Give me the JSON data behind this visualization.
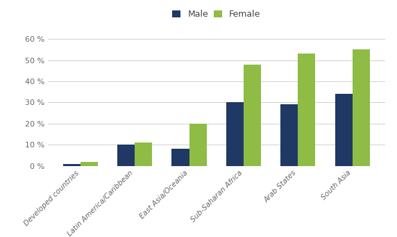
{
  "categories": [
    "Developed countries",
    "Latin America/Caribbean",
    "East Asia/Oceania",
    "Sub-Saharan Africa",
    "Arab States",
    "South Asia"
  ],
  "male_values": [
    1,
    10,
    8,
    30,
    29,
    34
  ],
  "female_values": [
    2,
    11,
    20,
    48,
    53,
    55
  ],
  "male_color": "#1F3864",
  "female_color": "#8FBC45",
  "legend_labels": [
    "Male",
    "Female"
  ],
  "ylim": [
    0,
    65
  ],
  "yticks": [
    0,
    10,
    20,
    30,
    40,
    50,
    60
  ],
  "background_color": "#ffffff",
  "grid_color": "#d0d0d0",
  "bar_width": 0.32,
  "figsize": [
    5.72,
    3.41
  ],
  "dpi": 100
}
